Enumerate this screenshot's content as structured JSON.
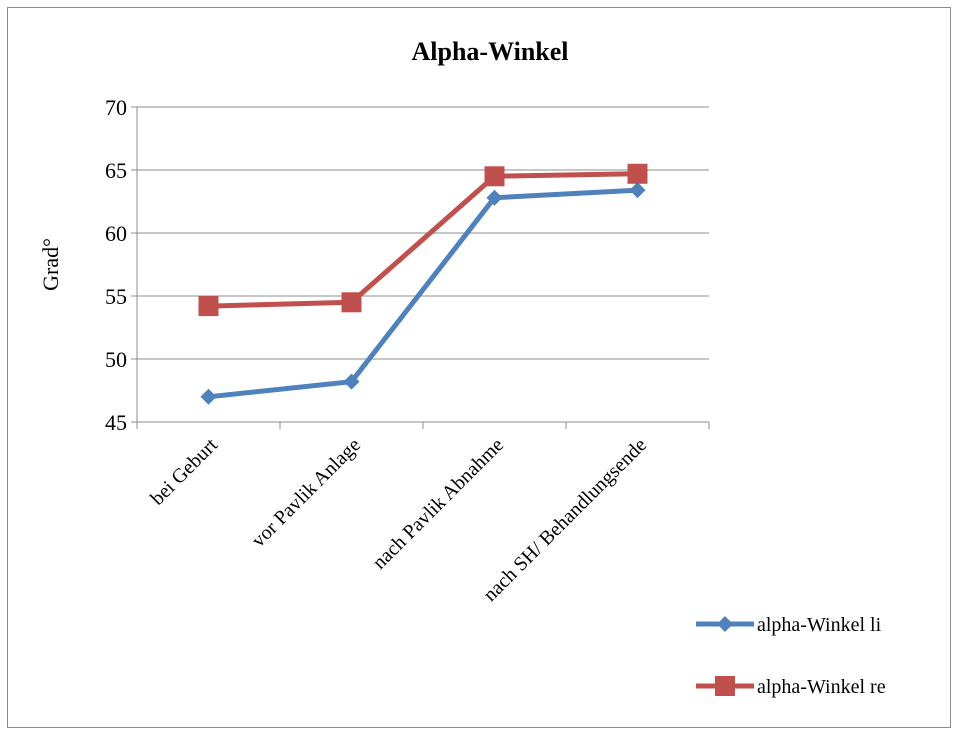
{
  "chart_data": {
    "type": "line",
    "title": "Alpha-Winkel",
    "xlabel": "",
    "ylabel": "Grad°",
    "ylim": [
      45,
      70
    ],
    "yticks": [
      45,
      50,
      55,
      60,
      65,
      70
    ],
    "categories": [
      "bei Geburt",
      "vor Pavlik Anlage",
      "nach Pavlik Abnahme",
      "nach SH/ Behandlungsende"
    ],
    "grid": true,
    "legend": "right",
    "series": [
      {
        "name": "alpha-Winkel li",
        "color": "#4f81bd",
        "marker": "diamond",
        "values": [
          47.0,
          48.2,
          62.8,
          63.4
        ]
      },
      {
        "name": "alpha-Winkel re",
        "color": "#c0504d",
        "marker": "square",
        "values": [
          54.2,
          54.5,
          64.5,
          64.7
        ]
      }
    ]
  }
}
